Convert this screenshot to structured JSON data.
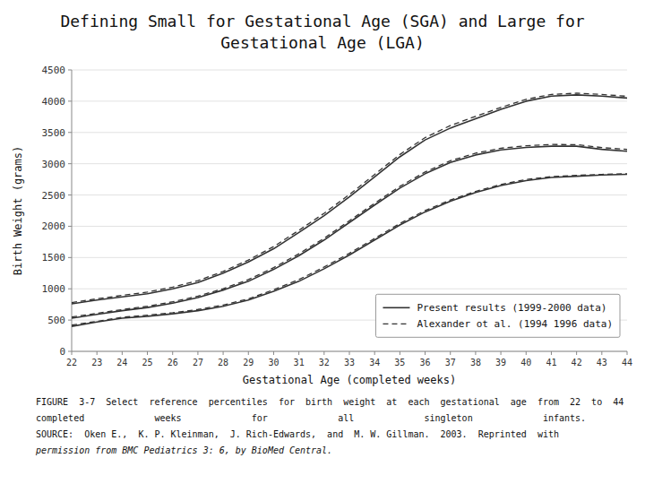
{
  "chart_data": {
    "type": "line",
    "title": [
      "Defining Small for Gestational Age (SGA) and Large for",
      "Gestational Age (LGA)"
    ],
    "x_label": "Gestational Age (completed weeks)",
    "y_label": "Birth Weight (grams)",
    "annotations": [
      "FIGURE  3-7  Select  reference  percentiles  for  birth  weight  at  each  gestational  age  from  22  to  44",
      "completed             weeks             for             all             singleton             infants.",
      "SOURCE:  Oken E.,  K. P. Kleinman,  J. Rich-Edwards,  and  M. W. Gillman.  2003.  Reprinted  with",
      "permission from BMC Pediatrics 3: 6, by BioMed Central."
    ],
    "x": [
      22,
      23,
      24,
      25,
      26,
      27,
      28,
      29,
      30,
      31,
      32,
      33,
      34,
      35,
      36,
      37,
      38,
      39,
      40,
      41,
      42,
      43,
      44
    ],
    "series": [
      {
        "name": "Present results (1999-2000 data)",
        "color": "#333333",
        "line_style": "solid",
        "values": [
          760,
          820,
          870,
          920,
          1000,
          1100,
          1250,
          1430,
          1640,
          1900,
          2170,
          2470,
          2790,
          3110,
          3380,
          3570,
          3720,
          3870,
          4000,
          4080,
          4100,
          4080,
          4050
        ]
      },
      {
        "name": "Present results (1999-2000 data)",
        "color": "#333333",
        "line_style": "solid",
        "values": [
          530,
          590,
          650,
          700,
          770,
          860,
          980,
          1120,
          1310,
          1530,
          1780,
          2060,
          2340,
          2610,
          2840,
          3020,
          3140,
          3220,
          3260,
          3280,
          3280,
          3230,
          3200
        ]
      },
      {
        "name": "Present results (1999-2000 data)",
        "color": "#333333",
        "line_style": "solid",
        "values": [
          400,
          470,
          530,
          560,
          600,
          650,
          720,
          820,
          960,
          1120,
          1320,
          1540,
          1780,
          2020,
          2230,
          2400,
          2540,
          2650,
          2730,
          2780,
          2800,
          2820,
          2830
        ]
      },
      {
        "name": "Alexander ot al. (1994 1996 data)",
        "color": "#333333",
        "line_style": "dashed",
        "values": [
          780,
          840,
          895,
          948,
          1028,
          1130,
          1278,
          1460,
          1675,
          1935,
          2208,
          2508,
          2828,
          3148,
          3418,
          3610,
          3758,
          3900,
          4030,
          4108,
          4128,
          4108,
          4078
        ]
      },
      {
        "name": "Alexander ot al. (1994 1996 data)",
        "color": "#333333",
        "line_style": "dashed",
        "values": [
          550,
          608,
          668,
          720,
          792,
          882,
          1002,
          1148,
          1338,
          1560,
          1808,
          2088,
          2368,
          2638,
          2868,
          3048,
          3168,
          3248,
          3288,
          3308,
          3305,
          3258,
          3228
        ]
      },
      {
        "name": "Alexander ot al. (1994 1996 data)",
        "color": "#333333",
        "line_style": "dashed",
        "values": [
          420,
          480,
          545,
          578,
          618,
          670,
          740,
          840,
          985,
          1148,
          1348,
          1568,
          1805,
          2045,
          2252,
          2420,
          2558,
          2668,
          2748,
          2795,
          2815,
          2830,
          2840
        ]
      }
    ],
    "xlim": [
      22,
      44
    ],
    "ylim": [
      0,
      4500
    ],
    "xticks": [
      22,
      23,
      24,
      25,
      26,
      27,
      28,
      29,
      30,
      31,
      32,
      33,
      34,
      35,
      36,
      37,
      38,
      39,
      40,
      41,
      42,
      43,
      44
    ],
    "yticks": [
      0,
      500,
      1000,
      1500,
      2000,
      2500,
      3000,
      3500,
      4000,
      4500
    ],
    "grid": true,
    "legend": "lower right"
  }
}
